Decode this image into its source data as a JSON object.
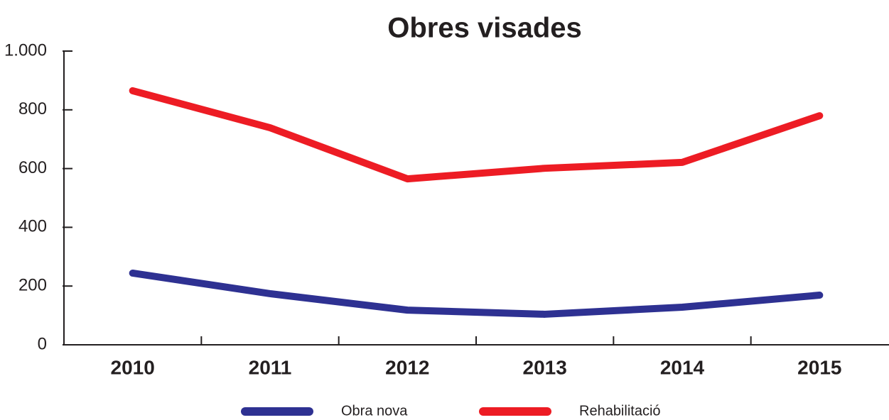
{
  "chart_data": {
    "type": "line",
    "title": "Obres visades",
    "categories": [
      "2010",
      "2011",
      "2012",
      "2013",
      "2014",
      "2015"
    ],
    "series": [
      {
        "name": "Obra nova",
        "color": "#2e3192",
        "values": [
          244,
          174,
          118,
          104,
          128,
          169
        ]
      },
      {
        "name": "Rehabilitació",
        "color": "#ed1c24",
        "values": [
          865,
          739,
          565,
          601,
          621,
          780
        ]
      }
    ],
    "ylim": [
      0,
      1000
    ],
    "yticks": [
      0,
      200,
      400,
      600,
      800,
      {
        "value": 1000,
        "label": "1.000"
      }
    ],
    "grid": false,
    "legend": "bottom"
  }
}
